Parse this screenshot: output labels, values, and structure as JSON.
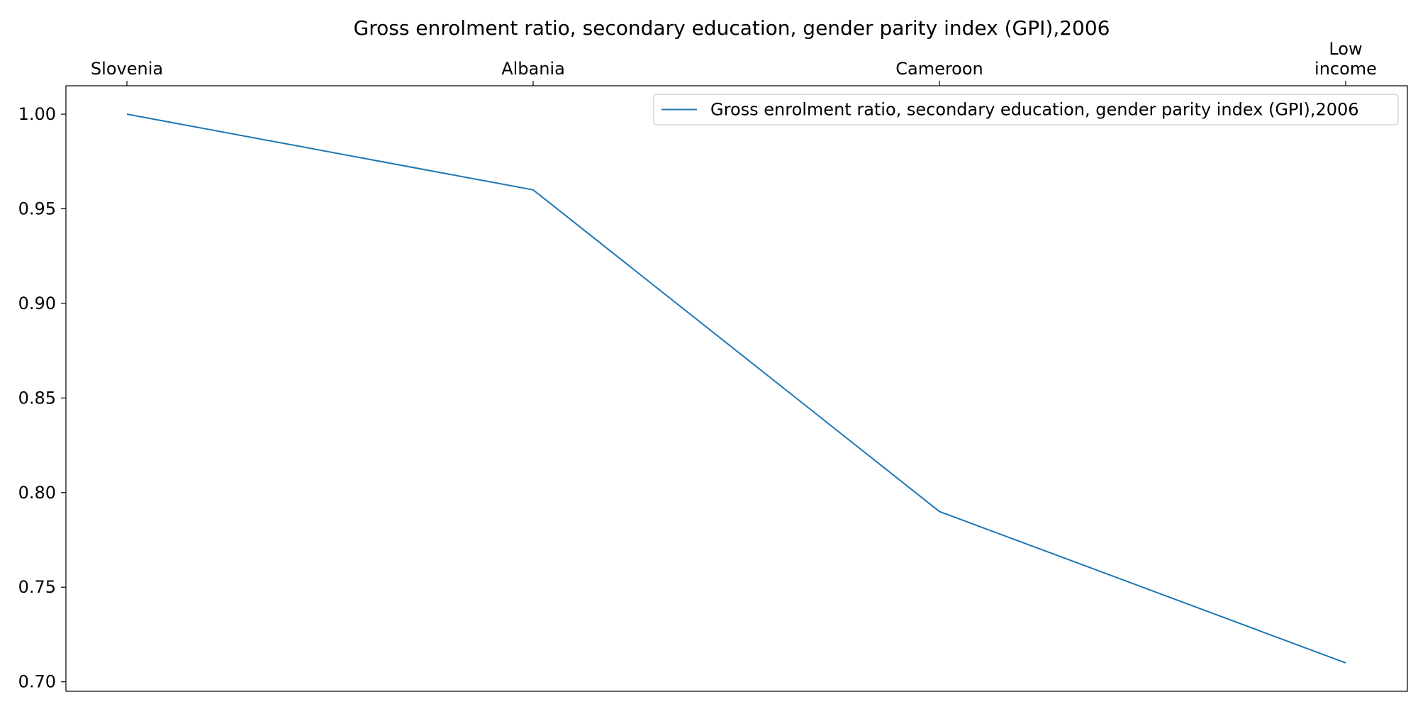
{
  "chart_data": {
    "type": "line",
    "title": "Gross enrolment ratio, secondary education, gender parity index (GPI),2006",
    "xlabel": "",
    "ylabel": "",
    "x_axis_position": "top",
    "categories": [
      "Slovenia",
      "Albania",
      "Cameroon",
      "Low income"
    ],
    "category_display_lines": [
      [
        "Slovenia"
      ],
      [
        "Albania"
      ],
      [
        "Cameroon"
      ],
      [
        "Low",
        "income"
      ]
    ],
    "series": [
      {
        "name": "Gross enrolment ratio, secondary education, gender parity index (GPI),2006",
        "values": [
          1.0,
          0.96,
          0.79,
          0.71
        ],
        "color": "#1f77b4"
      }
    ],
    "ylim": [
      0.695,
      1.015
    ],
    "yticks": [
      0.7,
      0.75,
      0.8,
      0.85,
      0.9,
      0.95,
      1.0
    ],
    "ytick_labels": [
      "0.70",
      "0.75",
      "0.80",
      "0.85",
      "0.90",
      "0.95",
      "1.00"
    ],
    "grid": false,
    "legend_position": "top-right"
  }
}
